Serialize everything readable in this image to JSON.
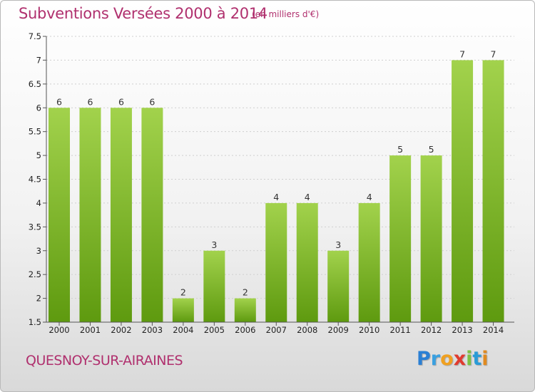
{
  "title": "Subventions Versées 2000 à 2014",
  "subtitle": "(en milliers d'€)",
  "commune": "QUESNOY-SUR-AIRAINES",
  "logo_text": "Proxiti",
  "colors": {
    "bar_light": "#9fd04a",
    "bar_dark": "#5f9b10",
    "title": "#b0306e",
    "grid": "#cccccc"
  },
  "chart_data": {
    "type": "bar",
    "title": "Subventions Versées 2000 à 2014",
    "subtitle": "(en milliers d'€)",
    "categories": [
      "2000",
      "2001",
      "2002",
      "2003",
      "2004",
      "2005",
      "2006",
      "2007",
      "2008",
      "2009",
      "2010",
      "2011",
      "2012",
      "2013",
      "2014"
    ],
    "values": [
      6,
      6,
      6,
      6,
      2,
      3,
      2,
      4,
      4,
      3,
      4,
      5,
      5,
      7,
      7
    ],
    "labels": [
      "6",
      "6",
      "6",
      "6",
      "2",
      "3",
      "2",
      "4",
      "4",
      "3",
      "4",
      "5",
      "5",
      "7",
      "7"
    ],
    "yticks": [
      "1.5",
      "2",
      "2.5",
      "3",
      "3.5",
      "4",
      "4.5",
      "5",
      "5.5",
      "6",
      "6.5",
      "7",
      "7.5"
    ],
    "ylim": [
      1.5,
      7.5
    ],
    "grid": true,
    "xlabel": "",
    "ylabel": ""
  }
}
